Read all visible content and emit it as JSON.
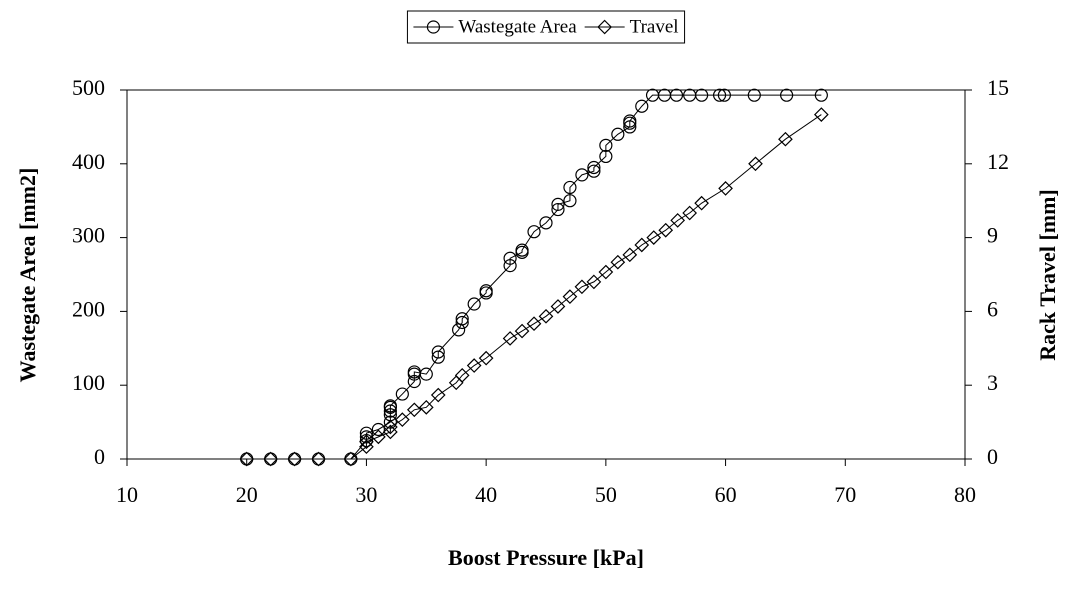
{
  "chart_data": {
    "type": "line",
    "x_label": "Boost Pressure [kPa]",
    "y_label": "Wastegate Area [mm2]",
    "y2_label": "Rack Travel [mm]",
    "xlim": [
      10,
      80
    ],
    "xticks": [
      10,
      20,
      30,
      40,
      50,
      60,
      70,
      80
    ],
    "ylim": [
      0,
      500
    ],
    "yticks": [
      0,
      100,
      200,
      300,
      400,
      500
    ],
    "y2lim": [
      0,
      15
    ],
    "y2ticks": [
      0,
      3,
      6,
      9,
      12,
      15
    ],
    "grid": false,
    "legend": "top",
    "series": [
      {
        "name": "Wastegate Area",
        "color": "#000000",
        "marker": "circle",
        "x": [
          20,
          22,
          24,
          26,
          28.7,
          30,
          30,
          30,
          31,
          32,
          32,
          32,
          32,
          32,
          33,
          34,
          34,
          34,
          35,
          36,
          36,
          37.7,
          38,
          38,
          39,
          40,
          40,
          42,
          42,
          43,
          43,
          44,
          45,
          46,
          46,
          47,
          47,
          48,
          49,
          49,
          50,
          50,
          51,
          52,
          52,
          52,
          53,
          53.9,
          54.9,
          55.9,
          57,
          58,
          59.5,
          59.9,
          62.4,
          65.1,
          68
        ],
        "values": [
          0,
          0,
          0,
          0,
          0,
          25,
          30,
          35,
          40,
          50,
          60,
          65,
          70,
          72,
          88,
          105,
          115,
          118,
          115,
          138,
          145,
          175,
          185,
          190,
          210,
          225,
          228,
          262,
          272,
          280,
          283,
          308,
          320,
          338,
          345,
          350,
          368,
          385,
          390,
          395,
          410,
          425,
          440,
          450,
          455,
          458,
          478,
          493,
          493,
          493,
          493,
          493,
          493,
          493,
          493,
          493,
          493
        ]
      },
      {
        "name": "Travel",
        "color": "#000000",
        "marker": "diamond",
        "axis": "y2",
        "x": [
          20,
          22,
          24,
          26,
          28.7,
          30,
          30,
          31,
          32,
          32,
          33,
          34,
          35,
          36,
          37.5,
          38,
          39,
          40,
          42,
          43,
          44,
          45,
          46,
          47,
          48,
          49,
          50,
          51,
          52,
          53,
          54,
          55,
          56,
          57,
          58,
          60,
          62.5,
          65,
          68
        ],
        "values": [
          0,
          0,
          0,
          0,
          0,
          0.5,
          0.7,
          0.9,
          1.1,
          1.3,
          1.6,
          2.0,
          2.1,
          2.6,
          3.1,
          3.4,
          3.8,
          4.1,
          4.9,
          5.2,
          5.5,
          5.8,
          6.2,
          6.6,
          7.0,
          7.2,
          7.6,
          8.0,
          8.3,
          8.7,
          9.0,
          9.3,
          9.7,
          10.0,
          10.4,
          11.0,
          12.0,
          13.0,
          14.0
        ]
      }
    ]
  }
}
